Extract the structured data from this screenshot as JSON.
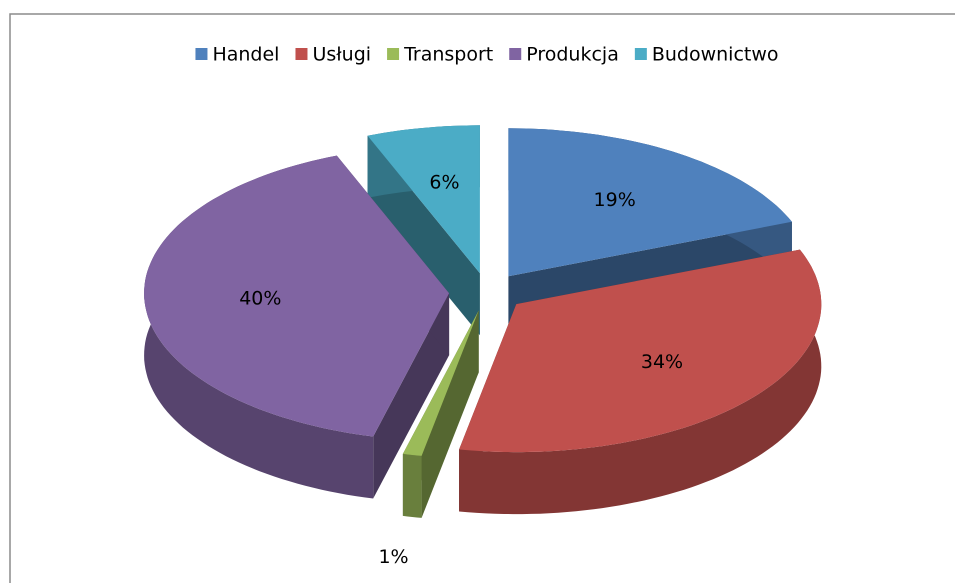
{
  "chart_data": {
    "type": "pie3d",
    "categories": [
      "Handel",
      "Usługi",
      "Transport",
      "Produkcja",
      "Budownictwo"
    ],
    "values": [
      19,
      34,
      1,
      40,
      6
    ],
    "value_labels": [
      "19%",
      "34%",
      "1%",
      "40%",
      "6%"
    ],
    "colors": [
      "#4f81bd",
      "#c0504d",
      "#9bbb59",
      "#8064a2",
      "#4bacc6"
    ],
    "legend": "top"
  }
}
